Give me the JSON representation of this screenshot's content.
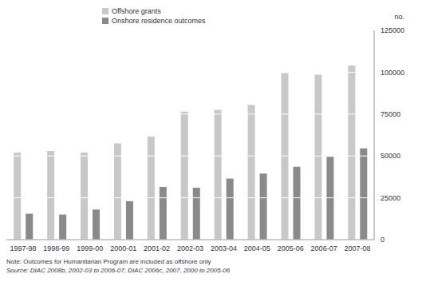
{
  "chart_data": {
    "type": "bar",
    "y_label": "no.",
    "categories": [
      "1997-98",
      "1998-99",
      "1999-00",
      "2000-01",
      "2001-02",
      "2002-03",
      "2003-04",
      "2004-05",
      "2005-06",
      "2006-07",
      "2007-08"
    ],
    "series": [
      {
        "name": "Offshore grants",
        "color": "#c8c8c8",
        "values": [
          52000,
          53000,
          52000,
          57500,
          61500,
          76500,
          77500,
          80500,
          99500,
          98500,
          104000
        ]
      },
      {
        "name": "Onshore residence outcomes",
        "color": "#8a8a8a",
        "values": [
          15500,
          15000,
          18000,
          23000,
          31500,
          31000,
          36500,
          39500,
          43500,
          49500,
          54500
        ]
      }
    ],
    "ylim": [
      0,
      125000
    ],
    "yticks": [
      0,
      25000,
      50000,
      75000,
      100000,
      125000
    ],
    "grid": true,
    "legend": "top-left",
    "annotations": [
      "Note: Outcomes for Humanitarian Program are included as offshore only",
      "Source: DIAC 2008b, 2002-03 to 2006-07; DIAC 2006c, 2007, 2000 to 2005-06"
    ]
  }
}
